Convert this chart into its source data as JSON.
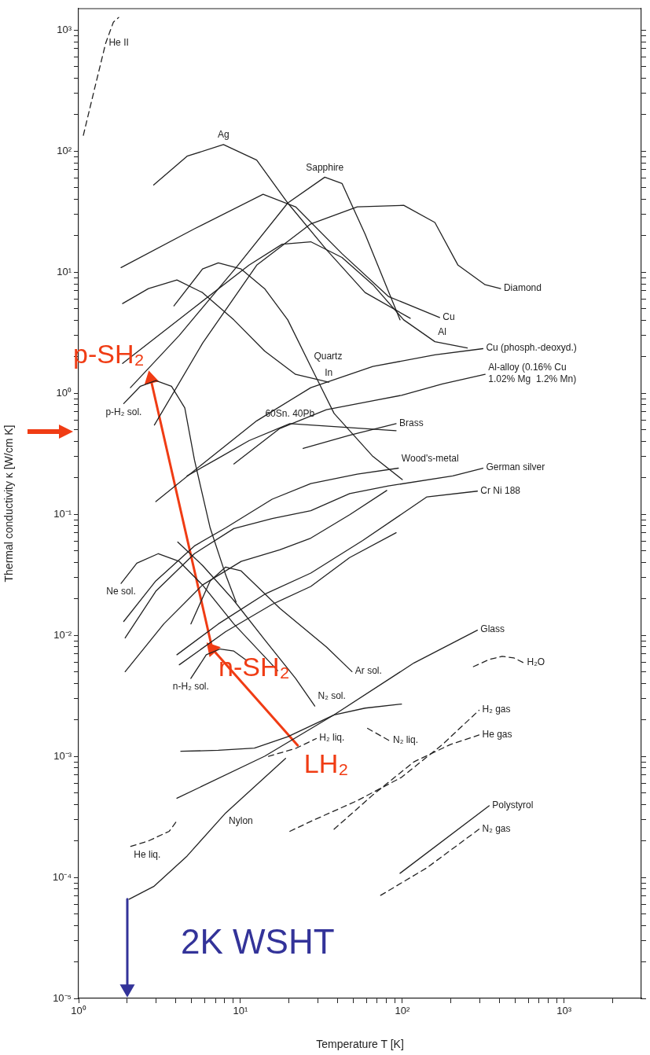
{
  "chart_data": {
    "type": "line",
    "xlabel": "Temperature T [K]",
    "ylabel": "Thermal conductivity κ [W/cm K]",
    "log": "xy",
    "grid": false,
    "legend": false,
    "marker": "none",
    "line_style": "solid",
    "xlim": [
      1,
      3000
    ],
    "ylim": [
      1e-05,
      1500
    ],
    "xticks": [
      {
        "value": 1,
        "label": "10⁰"
      },
      {
        "value": 2,
        "label": null
      },
      {
        "value": 3,
        "label": null
      },
      {
        "value": 4,
        "label": null
      },
      {
        "value": 5,
        "label": null
      },
      {
        "value": 6,
        "label": null
      },
      {
        "value": 7,
        "label": null
      },
      {
        "value": 8,
        "label": null
      },
      {
        "value": 9,
        "label": null
      },
      {
        "value": 10,
        "label": "10¹"
      },
      {
        "value": 20,
        "label": null
      },
      {
        "value": 30,
        "label": null
      },
      {
        "value": 40,
        "label": null
      },
      {
        "value": 50,
        "label": null
      },
      {
        "value": 60,
        "label": null
      },
      {
        "value": 70,
        "label": null
      },
      {
        "value": 80,
        "label": null
      },
      {
        "value": 90,
        "label": null
      },
      {
        "value": 100,
        "label": "10²"
      },
      {
        "value": 200,
        "label": null
      },
      {
        "value": 300,
        "label": null
      },
      {
        "value": 400,
        "label": null
      },
      {
        "value": 500,
        "label": null
      },
      {
        "value": 600,
        "label": null
      },
      {
        "value": 700,
        "label": null
      },
      {
        "value": 800,
        "label": null
      },
      {
        "value": 900,
        "label": null
      },
      {
        "value": 1000,
        "label": "10³"
      },
      {
        "value": 2000,
        "label": null
      }
    ],
    "yticks": [
      {
        "value": 1e-05,
        "label": "10⁻⁵"
      },
      {
        "value": 2e-05,
        "label": null
      },
      {
        "value": 3e-05,
        "label": null
      },
      {
        "value": 4e-05,
        "label": null
      },
      {
        "value": 5e-05,
        "label": null
      },
      {
        "value": 6e-05,
        "label": null
      },
      {
        "value": 7e-05,
        "label": null
      },
      {
        "value": 8e-05,
        "label": null
      },
      {
        "value": 9e-05,
        "label": null
      },
      {
        "value": 0.0001,
        "label": "10⁻⁴"
      },
      {
        "value": 0.0002,
        "label": null
      },
      {
        "value": 0.0003,
        "label": null
      },
      {
        "value": 0.0004,
        "label": null
      },
      {
        "value": 0.0005,
        "label": null
      },
      {
        "value": 0.0006,
        "label": null
      },
      {
        "value": 0.0007,
        "label": null
      },
      {
        "value": 0.0008,
        "label": null
      },
      {
        "value": 0.0009,
        "label": null
      },
      {
        "value": 0.001,
        "label": "10⁻³"
      },
      {
        "value": 0.002,
        "label": null
      },
      {
        "value": 0.003,
        "label": null
      },
      {
        "value": 0.004,
        "label": null
      },
      {
        "value": 0.005,
        "label": null
      },
      {
        "value": 0.006,
        "label": null
      },
      {
        "value": 0.007,
        "label": null
      },
      {
        "value": 0.008,
        "label": null
      },
      {
        "value": 0.009,
        "label": null
      },
      {
        "value": 0.01,
        "label": "10⁻²"
      },
      {
        "value": 0.02,
        "label": null
      },
      {
        "value": 0.03,
        "label": null
      },
      {
        "value": 0.04,
        "label": null
      },
      {
        "value": 0.05,
        "label": null
      },
      {
        "value": 0.06,
        "label": null
      },
      {
        "value": 0.07,
        "label": null
      },
      {
        "value": 0.08,
        "label": null
      },
      {
        "value": 0.09,
        "label": null
      },
      {
        "value": 0.1,
        "label": "10⁻¹"
      },
      {
        "value": 0.2,
        "label": null
      },
      {
        "value": 0.3,
        "label": null
      },
      {
        "value": 0.4,
        "label": null
      },
      {
        "value": 0.5,
        "label": null
      },
      {
        "value": 0.6,
        "label": null
      },
      {
        "value": 0.7,
        "label": null
      },
      {
        "value": 0.8,
        "label": null
      },
      {
        "value": 0.9,
        "label": null
      },
      {
        "value": 1,
        "label": "10⁰"
      },
      {
        "value": 2,
        "label": null
      },
      {
        "value": 3,
        "label": null
      },
      {
        "value": 4,
        "label": null
      },
      {
        "value": 5,
        "label": null
      },
      {
        "value": 6,
        "label": null
      },
      {
        "value": 7,
        "label": null
      },
      {
        "value": 8,
        "label": null
      },
      {
        "value": 9,
        "label": null
      },
      {
        "value": 10,
        "label": "10¹"
      },
      {
        "value": 20,
        "label": null
      },
      {
        "value": 30,
        "label": null
      },
      {
        "value": 40,
        "label": null
      },
      {
        "value": 50,
        "label": null
      },
      {
        "value": 60,
        "label": null
      },
      {
        "value": 70,
        "label": null
      },
      {
        "value": 80,
        "label": null
      },
      {
        "value": 90,
        "label": null
      },
      {
        "value": 100,
        "label": "10²"
      },
      {
        "value": 200,
        "label": null
      },
      {
        "value": 300,
        "label": null
      },
      {
        "value": 400,
        "label": null
      },
      {
        "value": 500,
        "label": null
      },
      {
        "value": 600,
        "label": null
      },
      {
        "value": 700,
        "label": null
      },
      {
        "value": 800,
        "label": null
      },
      {
        "value": 900,
        "label": null
      },
      {
        "value": 1000,
        "label": "10³"
      }
    ],
    "series": [
      {
        "color": "#222222",
        "line_style": "dashed",
        "x": [
          1.07,
          1.25,
          1.47,
          1.64,
          1.77
        ],
        "values": [
          135,
          320,
          778,
          1160,
          1270
        ]
      },
      {
        "color": "#222222",
        "x": [
          2.91,
          4.68,
          7.85,
          12.6,
          19.6,
          34,
          58.9,
          112
        ],
        "values": [
          52.4,
          90.6,
          113,
          84.2,
          37.2,
          15.3,
          6.77,
          4.15
        ]
      },
      {
        "color": "#222222",
        "x": [
          1.83,
          5.2,
          13.8,
          21.9,
          42.4,
          82,
          170
        ],
        "values": [
          10.9,
          22.8,
          43.9,
          34.6,
          14.2,
          6.29,
          4.21
        ]
      },
      {
        "color": "#222222",
        "x": [
          2.09,
          4.19,
          9.4,
          19.6,
          33.2,
          42.4,
          58.9,
          96.8
        ],
        "values": [
          1.11,
          3.0,
          10.9,
          37.2,
          60.8,
          54,
          20.6,
          4.03
        ]
      },
      {
        "color": "#222222",
        "x": [
          2.94,
          5.83,
          12.6,
          27.2,
          52.7,
          102,
          159,
          221,
          325,
          405
        ],
        "values": [
          0.545,
          2.58,
          11.4,
          25,
          34.6,
          35.6,
          25.7,
          11.4,
          7.86,
          7.3
        ]
      },
      {
        "color": "#222222",
        "x": [
          1.87,
          5.2,
          11.3,
          18.1,
          27.2,
          42.4,
          65.8,
          102,
          159,
          252
        ],
        "values": [
          1.76,
          5.11,
          11.4,
          17,
          17.8,
          13.2,
          7.86,
          4.03,
          2.66,
          2.36
        ]
      },
      {
        "color": "#222222",
        "x": [
          3.88,
          5.83,
          7.3,
          10.1,
          14.1,
          19.6,
          27.2,
          37.9,
          65.8,
          100
        ],
        "values": [
          5.26,
          10.6,
          11.9,
          10.6,
          7.3,
          4.03,
          1.66,
          0.68,
          0.3,
          0.193
        ]
      },
      {
        "color": "#222222",
        "x": [
          1.87,
          2.7,
          4.05,
          5.83,
          9.1,
          14.1,
          21.9,
          35.1
        ],
        "values": [
          5.5,
          7.3,
          8.6,
          6.77,
          4.03,
          2.23,
          1.43,
          1.23
        ]
      },
      {
        "color": "#222222",
        "x": [
          3.0,
          5.83,
          12.6,
          27.2,
          65.8,
          159,
          315
        ],
        "values": [
          0.127,
          0.26,
          0.59,
          1.11,
          1.66,
          2.07,
          2.33
        ]
      },
      {
        "color": "#222222",
        "x": [
          9.1,
          17.5,
          34,
          98.9,
          177,
          325
        ],
        "values": [
          0.26,
          0.51,
          0.73,
          0.96,
          1.19,
          1.43
        ]
      },
      {
        "color": "#222222",
        "x": [
          4.68,
          7.3,
          11.3,
          20.2,
          37.9,
          91.6
        ],
        "values": [
          0.207,
          0.29,
          0.405,
          0.56,
          0.53,
          0.49
        ]
      },
      {
        "color": "#222222",
        "x": [
          24.4,
          47.3,
          91.6
        ],
        "values": [
          0.349,
          0.449,
          0.56
        ]
      },
      {
        "color": "#222222",
        "x": [
          1.9,
          3.0,
          5.2,
          8.1,
          15.7,
          27.2,
          52.7,
          94.6
        ],
        "values": [
          0.013,
          0.0281,
          0.0547,
          0.077,
          0.133,
          0.179,
          0.214,
          0.24
        ]
      },
      {
        "color": "#222222",
        "x": [
          1.94,
          3.0,
          5.2,
          9.1,
          15.7,
          27.2,
          47.3,
          82,
          205,
          315
        ],
        "values": [
          0.0095,
          0.0231,
          0.0472,
          0.076,
          0.092,
          0.107,
          0.148,
          0.171,
          0.207,
          0.24
        ]
      },
      {
        "color": "#222222",
        "x": [
          1.94,
          3.36,
          5.83,
          10.1,
          17.5,
          27.2,
          47.3,
          80.2
        ],
        "values": [
          0.005,
          0.0124,
          0.026,
          0.0407,
          0.0508,
          0.0634,
          0.099,
          0.157
        ]
      },
      {
        "color": "#222222",
        "x": [
          4.05,
          7.3,
          14.1,
          27.2,
          57,
          142,
          291
        ],
        "values": [
          0.0069,
          0.0124,
          0.0218,
          0.0326,
          0.0606,
          0.139,
          0.155
        ]
      },
      {
        "color": "#222222",
        "x": [
          4.19,
          8.1,
          15.7,
          27.2,
          47.3,
          91.6
        ],
        "values": [
          0.0057,
          0.0107,
          0.018,
          0.0253,
          0.0438,
          0.0703
        ]
      },
      {
        "color": "#222222",
        "x": [
          1.9,
          2.41,
          3.0,
          3.75,
          4.53,
          5.2,
          6.5,
          8.1,
          9.4
        ],
        "values": [
          0.82,
          1.14,
          1.27,
          1.14,
          0.755,
          0.28,
          0.077,
          0.0316,
          0.0188
        ]
      },
      {
        "color": "#222222",
        "x": [
          1.83,
          2.29,
          3.11,
          4.19,
          5.83,
          9.1,
          17
        ],
        "values": [
          0.0268,
          0.0394,
          0.0472,
          0.0407,
          0.026,
          0.0124,
          0.0051
        ]
      },
      {
        "color": "#222222",
        "x": [
          4.94,
          6.5,
          8.1,
          10.1,
          17.5,
          34,
          48.9
        ],
        "values": [
          0.0124,
          0.0281,
          0.0366,
          0.034,
          0.0167,
          0.008,
          0.005
        ]
      },
      {
        "color": "#222222",
        "x": [
          4.1,
          5.83,
          9.1,
          14.1,
          21.9,
          28.8
        ],
        "values": [
          0.0589,
          0.0377,
          0.0194,
          0.0092,
          0.0044,
          0.0026
        ]
      },
      {
        "color": "#222222",
        "x": [
          4.94,
          6.15,
          7.5,
          9.1,
          10.9
        ],
        "values": [
          0.0044,
          0.0069,
          0.0077,
          0.0074,
          0.0062
        ]
      },
      {
        "color": "#222222",
        "x": [
          4.05,
          14.1,
          37.9,
          118,
          291
        ],
        "values": [
          0.00045,
          0.001,
          0.0022,
          0.0059,
          0.011
        ]
      },
      {
        "color": "#222222",
        "x": [
          4.28,
          7.3,
          12.2,
          19.6,
          37.9,
          58.9,
          98.9
        ],
        "values": [
          0.0011,
          0.00112,
          0.00117,
          0.00145,
          0.0022,
          0.0025,
          0.0027
        ]
      },
      {
        "color": "#222222",
        "line_style": "dashed",
        "x": [
          14.9,
          21.9,
          29.4
        ],
        "values": [
          0.001,
          0.00116,
          0.0014
        ]
      },
      {
        "color": "#222222",
        "line_style": "dashed",
        "x": [
          61,
          83.8
        ],
        "values": [
          0.0017,
          0.00134
        ]
      },
      {
        "color": "#222222",
        "line_style": "dashed",
        "x": [
          2.1,
          2.7,
          3.63,
          4.1
        ],
        "values": [
          0.00018,
          0.0002,
          0.00024,
          0.0003
        ]
      },
      {
        "color": "#222222",
        "x": [
          2.05,
          2.91,
          4.68,
          8.1,
          19
        ],
        "values": [
          6.6e-05,
          8.4e-05,
          0.00015,
          0.00034,
          0.00096
        ]
      },
      {
        "color": "#222222",
        "line_style": "dashed",
        "x": [
          20.2,
          27.2,
          52.7,
          98.9,
          177,
          298
        ],
        "values": [
          0.00024,
          0.00029,
          0.00043,
          0.00067,
          0.00125,
          0.0024
        ]
      },
      {
        "color": "#222222",
        "line_style": "dashed",
        "x": [
          37.9,
          65.8,
          118,
          198,
          298
        ],
        "values": [
          0.00025,
          0.00048,
          0.0009,
          0.00125,
          0.0015
        ]
      },
      {
        "color": "#222222",
        "line_style": "dashed",
        "x": [
          73.5,
          142,
          298
        ],
        "values": [
          7.1e-05,
          0.00012,
          0.00025
        ]
      },
      {
        "color": "#222222",
        "x": [
          96.8,
          344
        ],
        "values": [
          0.000108,
          0.00039
        ]
      },
      {
        "color": "#222222",
        "line_style": "dashed",
        "x": [
          275,
          344,
          414,
          489,
          564
        ],
        "values": [
          0.0055,
          0.0063,
          0.0067,
          0.0065,
          0.0059
        ]
      },
      {
        "color": "#f03c14",
        "marker": "triangle",
        "x": [
          22.6,
          6.7,
          2.79
        ],
        "values": [
          0.00123,
          0.0077,
          1.31
        ],
        "value_labels": [
          "LH₂",
          "n-SH₂",
          "p-SH₂"
        ]
      },
      {
        "name": "2K WSHT",
        "color": "#333399",
        "marker": "triangle",
        "x": [
          2,
          2
        ],
        "values": [
          6.6e-05,
          1.2e-05
        ]
      }
    ],
    "annotations": [
      {
        "text": "He II",
        "x": 1.47,
        "y": 778
      },
      {
        "text": "Ag",
        "x": 7.85,
        "y": 113
      },
      {
        "text": "Sapphire",
        "x": 33.2,
        "y": 60.8
      },
      {
        "text": "Diamond",
        "x": 405,
        "y": 7.3
      },
      {
        "text": "Cu",
        "x": 170,
        "y": 4.21
      },
      {
        "text": "Al",
        "x": 159,
        "y": 2.66
      },
      {
        "text": "Cu (phosph.-deoxyd.)",
        "x": 315,
        "y": 2.33
      },
      {
        "text": "Al-alloy (0.16% Cu\n1.02% Mg  1.2% Mn)",
        "x": 325,
        "y": 1.43
      },
      {
        "text": "Quartz",
        "x": 27.2,
        "y": 1.66
      },
      {
        "text": "In",
        "x": 35.1,
        "y": 1.23
      },
      {
        "text": "p-H₂ sol.",
        "x": 1.9,
        "y": 0.82
      },
      {
        "text": "60Sn. 40Pb",
        "x": 20.2,
        "y": 0.56
      },
      {
        "text": "Brass",
        "x": 91.6,
        "y": 0.56
      },
      {
        "text": "Wood's-metal",
        "x": 94.6,
        "y": 0.24
      },
      {
        "text": "German silver",
        "x": 315,
        "y": 0.24
      },
      {
        "text": "Cr Ni 188",
        "x": 291,
        "y": 0.155
      },
      {
        "text": "Ne sol.",
        "x": 1.83,
        "y": 0.0268
      },
      {
        "text": "Ar sol.",
        "x": 48.9,
        "y": 0.005
      },
      {
        "text": "N₂ sol.",
        "x": 28.8,
        "y": 0.0026
      },
      {
        "text": "n-H₂ sol.",
        "x": 4.94,
        "y": 0.0044
      },
      {
        "text": "Glass",
        "x": 291,
        "y": 0.011
      },
      {
        "text": "H₂O",
        "x": 564,
        "y": 0.0059
      },
      {
        "text": "H₂ liq.",
        "x": 29.4,
        "y": 0.0014
      },
      {
        "text": "N₂ liq.",
        "x": 83.8,
        "y": 0.00134
      },
      {
        "text": "He liq.",
        "x": 2.1,
        "y": 0.00018
      },
      {
        "text": "Nylon",
        "x": 8.1,
        "y": 0.00034
      },
      {
        "text": "H₂ gas",
        "x": 298,
        "y": 0.0024
      },
      {
        "text": "He gas",
        "x": 298,
        "y": 0.0015
      },
      {
        "text": "Polystyrol",
        "x": 344,
        "y": 0.00039
      },
      {
        "text": "N₂ gas",
        "x": 298,
        "y": 0.00025
      }
    ]
  }
}
